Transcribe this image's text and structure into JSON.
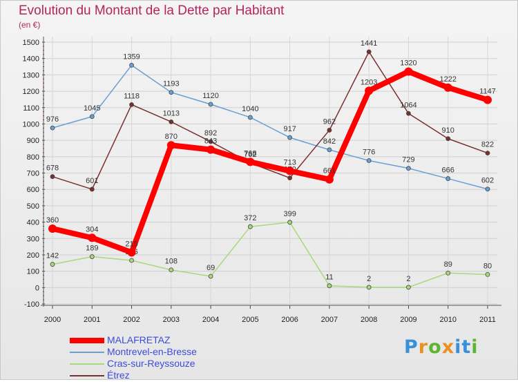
{
  "header": {
    "title": "Evolution du Montant de la Dette par Habitant",
    "unit": "(en €)"
  },
  "logo": {
    "text": "Proxiti",
    "colors": [
      "#3a8fd9",
      "#e89020",
      "#5ab531",
      "#e89020",
      "#3a8fd9",
      "#3a8fd9",
      "#5ab531"
    ]
  },
  "chart_data": {
    "type": "line",
    "title": "Evolution du Montant de la Dette par Habitant",
    "subtitle": "(en €)",
    "xlabel": "",
    "ylabel": "",
    "x": [
      "2000",
      "2001",
      "2002",
      "2003",
      "2004",
      "2005",
      "2006",
      "2007",
      "2008",
      "2009",
      "2010",
      "2011"
    ],
    "ylim": [
      -100,
      1500
    ],
    "yticks": [
      -100,
      0,
      100,
      200,
      300,
      400,
      500,
      600,
      700,
      800,
      900,
      1000,
      1100,
      1200,
      1300,
      1400,
      1500
    ],
    "grid": true,
    "legend_position": "bottom-left",
    "series": [
      {
        "name": "MALAFRETAZ",
        "color": "#ff0000",
        "emphasis": true,
        "values": [
          360,
          304,
          215,
          870,
          843,
          768,
          713,
          661,
          1203,
          1320,
          1222,
          1147
        ]
      },
      {
        "name": "Montrevel-en-Bresse",
        "color": "#6a9fd4",
        "emphasis": false,
        "values": [
          976,
          1045,
          1359,
          1193,
          1120,
          1040,
          917,
          842,
          776,
          729,
          666,
          602
        ]
      },
      {
        "name": "Cras-sur-Reyssouze",
        "color": "#a8d87a",
        "emphasis": false,
        "values": [
          142,
          189,
          166,
          108,
          69,
          372,
          399,
          11,
          2,
          2,
          89,
          80
        ]
      },
      {
        "name": "Étrez",
        "color": "#7a2e2e",
        "emphasis": false,
        "values": [
          678,
          601,
          1118,
          1013,
          892,
          762,
          670,
          962,
          1441,
          1064,
          910,
          822
        ]
      }
    ]
  }
}
